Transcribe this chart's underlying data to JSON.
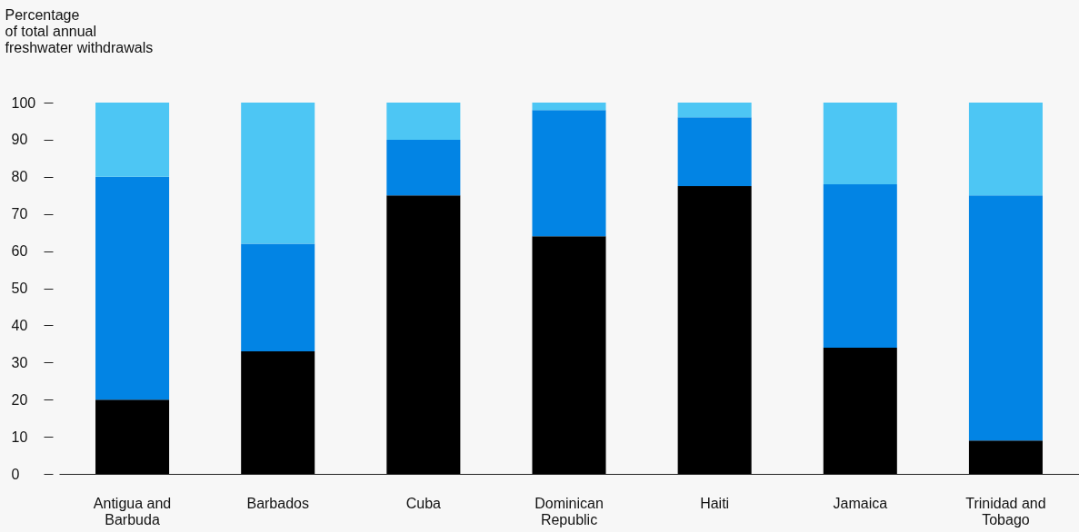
{
  "chart_data": {
    "type": "bar",
    "stacked": true,
    "ylabel": "Percentage\nof total annual\nfreshwater withdrawals",
    "categories": [
      "Antigua and Barbuda",
      "Barbados",
      "Cuba",
      "Dominican Republic",
      "Haiti",
      "Jamaica",
      "Trinidad and Tobago"
    ],
    "series": [
      {
        "color": "#000000",
        "values": [
          20,
          33,
          75,
          64,
          77.5,
          34,
          9
        ]
      },
      {
        "color": "#0284e4",
        "values": [
          60,
          29,
          15,
          34,
          18.5,
          44,
          66
        ]
      },
      {
        "color": "#4dc6f4",
        "values": [
          20,
          38,
          10,
          2,
          4,
          22,
          25
        ]
      }
    ],
    "ylim": [
      0,
      100
    ],
    "yticks": [
      0,
      10,
      20,
      30,
      40,
      50,
      60,
      70,
      80,
      90,
      100
    ],
    "grid": false,
    "legend": false
  }
}
